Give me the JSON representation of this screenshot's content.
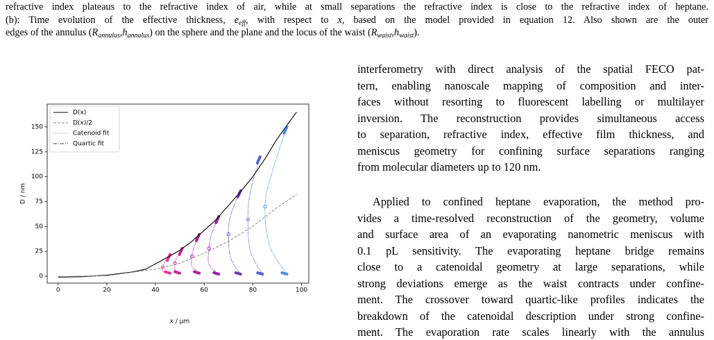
{
  "caption": {
    "lines": [
      [
        "refractive index plateaus to the refractive index of air, while at small separations the refractive index is close to the refractive index of heptane."
      ],
      [
        "(b): Time evolution of the effective thickness, ",
        {
          "text": "e",
          "style": "i"
        },
        {
          "text": "eff",
          "style": "sub"
        },
        ", with respect to ",
        {
          "text": "x",
          "style": "i"
        },
        ", based on the model provided in equation 12. Also shown are the outer"
      ],
      [
        "edges of the annulus (",
        {
          "text": "R",
          "style": "i"
        },
        {
          "text": "annulus",
          "style": "sub"
        },
        ",",
        {
          "text": "h",
          "style": "i"
        },
        {
          "text": "annulus",
          "style": "sub"
        },
        ") on the sphere and the plane and the locus of the waist (",
        {
          "text": "R",
          "style": "i"
        },
        {
          "text": "waist",
          "style": "sub"
        },
        ",",
        {
          "text": "h",
          "style": "i"
        },
        {
          "text": "waist",
          "style": "sub"
        },
        ")."
      ]
    ]
  },
  "body": {
    "paragraphs": [
      [
        "interferometry with direct analysis of the spatial FECO pat-",
        "tern, enabling nanoscale mapping of composition and inter-",
        "faces without resorting to fluorescent labelling or multilayer",
        "inversion.  The reconstruction provides simultaneous access",
        "to separation, refractive index, effective film thickness, and",
        "meniscus geometry for confining surface separations ranging",
        "from molecular diameters up to 120 nm."
      ],
      [
        "Applied to confined heptane evaporation, the method pro-",
        "vides a time-resolved reconstruction of the geometry, volume",
        "and surface area of an evaporating nanometric meniscus with",
        "0.1 pL sensitivity.  The evaporating heptane bridge remains",
        "close to a catenoidal geometry at large separations, while",
        "strong deviations emerge as the waist contracts under confine-",
        "ment. The crossover toward quartic-like profiles indicates the",
        "breakdown of the catenoidal description under strong confine-",
        "ment.  The evaporation rate scales linearly with the annulus"
      ]
    ]
  },
  "chart_data": {
    "type": "line",
    "x_label": "x / μm",
    "y_label": "D / nm",
    "xlim": [
      -4.5,
      103
    ],
    "ylim": [
      -7,
      173
    ],
    "xticks": [
      0,
      20,
      40,
      60,
      80,
      100
    ],
    "yticks": [
      0,
      25,
      50,
      75,
      100,
      125,
      150
    ],
    "legend": "upper left",
    "series": [
      {
        "name": "D(x)",
        "color": "#000000",
        "style": "solid",
        "x": [
          0,
          10,
          20,
          30,
          36,
          39,
          42,
          45,
          50,
          55,
          60,
          65,
          70,
          75,
          80,
          85,
          90,
          95,
          98
        ],
        "values": [
          -1,
          -0.5,
          1,
          4,
          7,
          11,
          15,
          19,
          26,
          35,
          46,
          57,
          71,
          85,
          100,
          118,
          138,
          155,
          165
        ]
      },
      {
        "name": "D(x)/2",
        "color": "#808080",
        "style": "dashed",
        "x": [
          0,
          20,
          40,
          50,
          60,
          70,
          80,
          90,
          98
        ],
        "values": [
          -0.5,
          0.5,
          7,
          13,
          23,
          35,
          50,
          69,
          82
        ]
      }
    ],
    "fits": [
      {
        "name": "Catenoid fit",
        "color": "#999999",
        "style": "dotted"
      },
      {
        "name": "Quartic fit",
        "color": "#333333",
        "style": "dashdot"
      }
    ],
    "profiles": [
      {
        "color": "#e8399a",
        "x": [
          46,
          44,
          43,
          43,
          46
        ],
        "y": [
          22,
          15,
          9,
          5,
          3
        ]
      },
      {
        "color": "#c8289a",
        "x": [
          51,
          49,
          48,
          48,
          50
        ],
        "y": [
          28,
          20,
          13,
          7,
          3
        ]
      },
      {
        "color": "#a8269e",
        "x": [
          58,
          56,
          55,
          55,
          58
        ],
        "y": [
          42,
          30,
          20,
          10,
          3
        ]
      },
      {
        "color": "#8c2a9e",
        "x": [
          66,
          63,
          62,
          62,
          66
        ],
        "y": [
          60,
          42,
          28,
          12,
          2
        ]
      },
      {
        "color": "#6d3fb0",
        "x": [
          75,
          71,
          70,
          71,
          75
        ],
        "y": [
          86,
          62,
          42,
          18,
          2
        ]
      },
      {
        "color": "#5a5fd0",
        "x": [
          83,
          79,
          78,
          79,
          84
        ],
        "y": [
          120,
          85,
          57,
          25,
          2
        ]
      },
      {
        "color": "#4a90e0",
        "x": [
          94,
          88,
          85,
          87,
          94
        ],
        "y": [
          150,
          105,
          70,
          30,
          2
        ]
      }
    ]
  }
}
